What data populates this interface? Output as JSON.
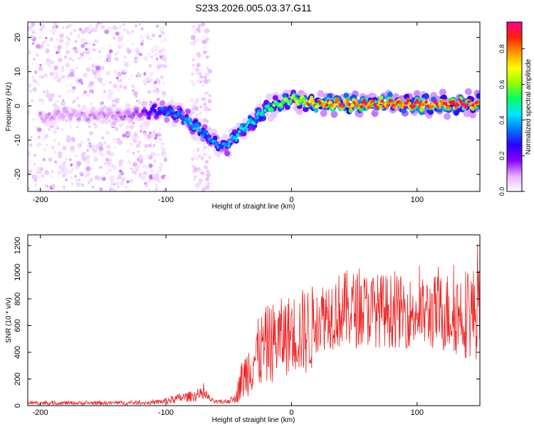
{
  "title": "S233.2026.005.03.37.G11",
  "chart_data": [
    {
      "type": "heatmap",
      "xlabel": "Height of straight line (km)",
      "ylabel": "Frequency (Hz)",
      "xlim": [
        -210,
        150
      ],
      "ylim": [
        -25,
        24.5
      ],
      "xticks": [
        -200,
        -100,
        0,
        100
      ],
      "yticks": [
        20,
        10,
        0,
        -10,
        -20
      ],
      "colorbar": {
        "label": "Normalized spectral amplitude",
        "range": [
          0,
          0.95
        ],
        "ticks": [
          0.0,
          0.2,
          0.4,
          0.6,
          0.8
        ],
        "tick_labels": [
          "0.0",
          "0.2",
          "0.4",
          "0.6",
          "0.8"
        ],
        "colors": [
          "#ffffff",
          "#e6b0ff",
          "#8a00ff",
          "#2b00ff",
          "#0077ff",
          "#00e6ff",
          "#00ff66",
          "#8fff00",
          "#ffff00",
          "#ff9900",
          "#ff2200",
          "#ff0099"
        ]
      },
      "ridge": {
        "x": [
          -210,
          -195,
          -180,
          -165,
          -150,
          -135,
          -120,
          -110,
          -100,
          -90,
          -80,
          -70,
          -60,
          -55,
          -50,
          -45,
          -40,
          -30,
          -20,
          -10,
          0,
          10,
          20,
          40,
          60,
          80,
          100,
          120,
          140,
          150
        ],
        "y": [
          -3,
          -3.5,
          -2,
          -3,
          -2.5,
          -3,
          -2,
          -1.5,
          -1.5,
          -2.5,
          -5,
          -8,
          -11,
          -12,
          -11,
          -9,
          -7,
          -4,
          -1,
          0.5,
          2,
          1.5,
          0.5,
          0.5,
          0.5,
          0.5,
          0.5,
          0.5,
          0.5,
          0.5
        ],
        "amplitude": [
          0.1,
          0.1,
          0.1,
          0.1,
          0.1,
          0.12,
          0.15,
          0.25,
          0.35,
          0.35,
          0.4,
          0.4,
          0.35,
          0.35,
          0.4,
          0.45,
          0.45,
          0.45,
          0.5,
          0.55,
          0.6,
          0.75,
          0.8,
          0.85,
          0.9,
          0.9,
          0.9,
          0.9,
          0.9,
          0.9
        ]
      }
    },
    {
      "type": "line",
      "xlabel": "Height of straight line (km)",
      "ylabel": "SNR (10 * v/v)",
      "xlim": [
        -210,
        150
      ],
      "ylim": [
        0,
        1280
      ],
      "xticks": [
        -200,
        -100,
        0,
        100
      ],
      "yticks": [
        0,
        200,
        400,
        600,
        800,
        1000,
        1200
      ],
      "color": "#ee2222",
      "envelope": {
        "x": [
          -210,
          -150,
          -110,
          -100,
          -90,
          -80,
          -70,
          -62,
          -55,
          -45,
          -40,
          -30,
          -20,
          -10,
          0,
          15,
          20,
          30,
          45,
          60,
          80,
          100,
          120,
          140,
          150
        ],
        "center": [
          20,
          20,
          22,
          35,
          55,
          70,
          85,
          30,
          25,
          50,
          180,
          350,
          450,
          500,
          540,
          560,
          650,
          700,
          720,
          720,
          710,
          690,
          700,
          700,
          690
        ],
        "amplitude": [
          15,
          15,
          15,
          25,
          35,
          40,
          50,
          15,
          15,
          30,
          150,
          250,
          300,
          300,
          300,
          350,
          250,
          280,
          300,
          280,
          280,
          260,
          300,
          350,
          350
        ]
      }
    }
  ]
}
